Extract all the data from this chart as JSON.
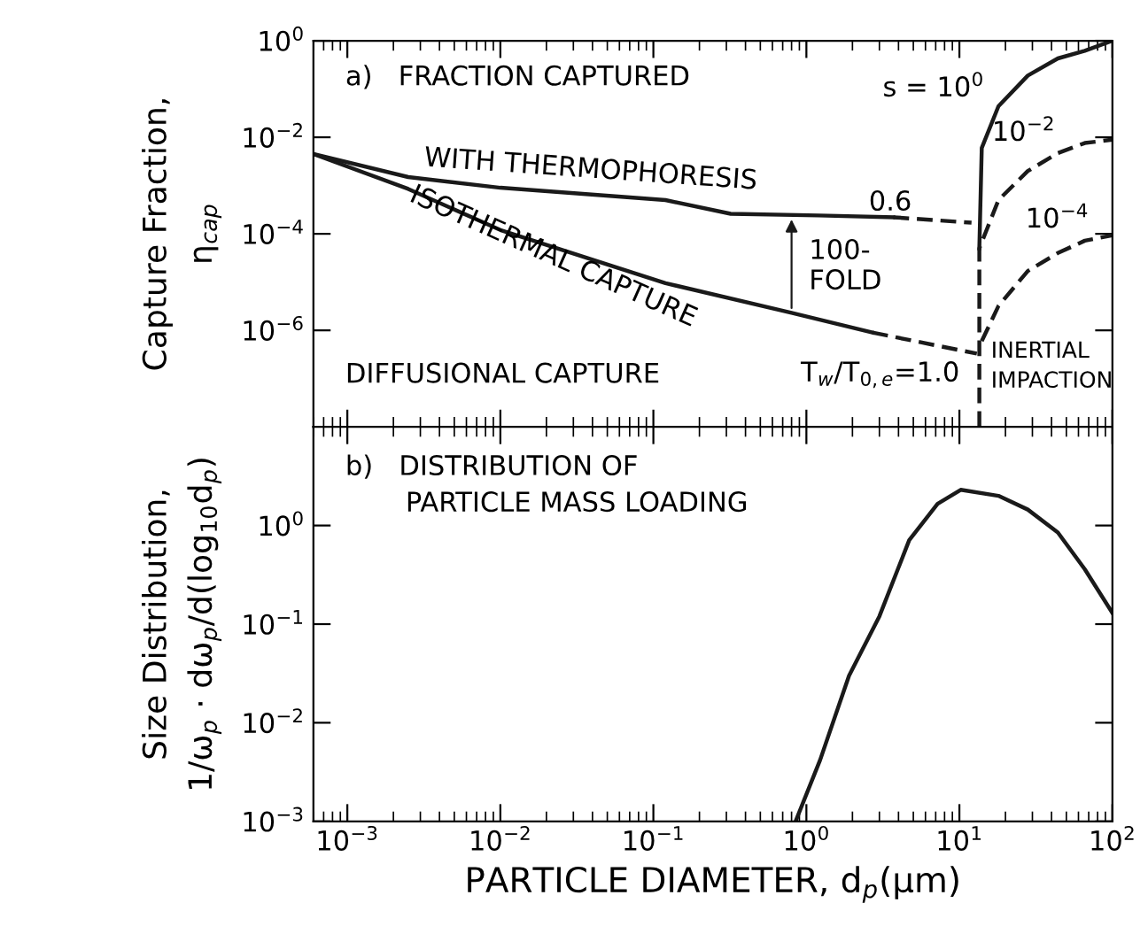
{
  "chart_data": [
    {
      "type": "line",
      "ylabel": "Capture Fraction,\nη$_{cap}$",
      "log": "xy",
      "grid": false,
      "tick_labels": "y",
      "legend": false,
      "xlim": [
        0.0006,
        100
      ],
      "xticks": [
        {
          "value": 0.001,
          "label": null
        },
        {
          "value": 0.01,
          "label": null
        },
        {
          "value": 0.1,
          "label": null
        },
        {
          "value": 1,
          "label": null
        },
        {
          "value": 10,
          "label": null
        },
        {
          "value": 100,
          "label": null
        }
      ],
      "ylim": [
        1e-08,
        1
      ],
      "yticks": [
        {
          "value": 1,
          "label": "10$^{0}$"
        },
        {
          "value": 0.01,
          "label": "10$^{−2}$"
        },
        {
          "value": 0.0001,
          "label": "10$^{−4}$"
        },
        {
          "value": 1e-06,
          "label": "10$^{−6}$"
        }
      ],
      "series": [
        {
          "color": "#1a1a1a",
          "line_style": "solid",
          "x": [
            0.0006,
            0.0025,
            0.01,
            0.12,
            0.32,
            1.2,
            3.7
          ],
          "values": [
            0.0045,
            0.0015,
            0.0009,
            0.0005,
            0.00026,
            0.00024,
            0.00022
          ]
        },
        {
          "color": "#1a1a1a",
          "line_style": "dashed",
          "x": [
            3.7,
            12
          ],
          "values": [
            0.00022,
            0.00017
          ]
        },
        {
          "color": "#1a1a1a",
          "line_style": "solid",
          "x": [
            0.0006,
            0.0025,
            0.01,
            0.12,
            0.8,
            2.7
          ],
          "values": [
            0.0045,
            0.00085,
            0.00012,
            9.5e-06,
            2.3e-06,
            9e-07
          ]
        },
        {
          "color": "#1a1a1a",
          "line_style": "dashed",
          "x": [
            2.7,
            13
          ],
          "values": [
            9e-07,
            3.3e-07
          ]
        },
        {
          "color": "#1a1a1a",
          "line_style": "solid",
          "x": [
            13.5,
            14,
            18,
            28,
            44,
            66,
            100
          ],
          "values": [
            5e-05,
            0.006,
            0.044,
            0.19,
            0.43,
            0.62,
            1.0
          ]
        },
        {
          "color": "#1a1a1a",
          "line_style": "dashed",
          "x": [
            13.5,
            13.5,
            18,
            28,
            44,
            66,
            100
          ],
          "values": [
            1e-08,
            5e-05,
            0.0005,
            0.002,
            0.0047,
            0.0076,
            0.0089
          ]
        },
        {
          "color": "#1a1a1a",
          "line_style": "dashed",
          "x": [
            14,
            18,
            28,
            44,
            66,
            100
          ],
          "values": [
            6e-07,
            3.2e-06,
            1.7e-05,
            4e-05,
            7.2e-05,
            9.3e-05
          ]
        }
      ],
      "annotations": [
        "a)   FRACTION CAPTURED",
        "WITH THERMOPHORESIS",
        "ISOTHERMAL CAPTURE",
        "0.6",
        {
          "text": "100-FOLD",
          "x": 0.8,
          "y": 0.00025
        },
        "DIFFUSIONAL CAPTURE",
        "T$_{w}$/T$_{0,e}$=1.0",
        "INERTIAL\nIMPACTION",
        "s = 10$^{0}$",
        "10$^{−2}$",
        "10$^{−4}$"
      ]
    },
    {
      "type": "line",
      "xlabel": "PARTICLE DIAMETER, d$_{p}$(μm)",
      "ylabel": "Size Distribution,\n1/ω$_{p}$ · dω$_{p}$/d(log$_{10}$d$_{p}$)",
      "log": "xy",
      "grid": false,
      "legend": false,
      "xlim": [
        0.0006,
        100
      ],
      "xticks": [
        {
          "value": 0.001,
          "label": "10$^{−3}$"
        },
        {
          "value": 0.01,
          "label": "10$^{−2}$"
        },
        {
          "value": 0.1,
          "label": "10$^{−1}$"
        },
        {
          "value": 1,
          "label": "10$^{0}$"
        },
        {
          "value": 10,
          "label": "10$^{1}$"
        },
        {
          "value": 100,
          "label": "10$^{2}$"
        }
      ],
      "ylim": [
        0.001,
        10
      ],
      "yticks": [
        {
          "value": 1,
          "label": "10$^{0}$"
        },
        {
          "value": 0.1,
          "label": "10$^{−1}$"
        },
        {
          "value": 0.01,
          "label": "10$^{−2}$"
        },
        {
          "value": 0.001,
          "label": "10$^{−3}$"
        }
      ],
      "series": [
        {
          "color": "#1a1a1a",
          "line_style": "solid",
          "x": [
            0.85,
            1.23,
            1.9,
            3.0,
            4.7,
            7.2,
            10.2,
            18,
            28,
            44,
            66,
            100
          ],
          "values": [
            0.001,
            0.0042,
            0.03,
            0.12,
            0.71,
            1.66,
            2.3,
            2.0,
            1.45,
            0.85,
            0.36,
            0.13
          ]
        }
      ],
      "annotations": [
        "b)   DISTRIBUTION OF\n       PARTICLE MASS LOADING"
      ]
    }
  ]
}
